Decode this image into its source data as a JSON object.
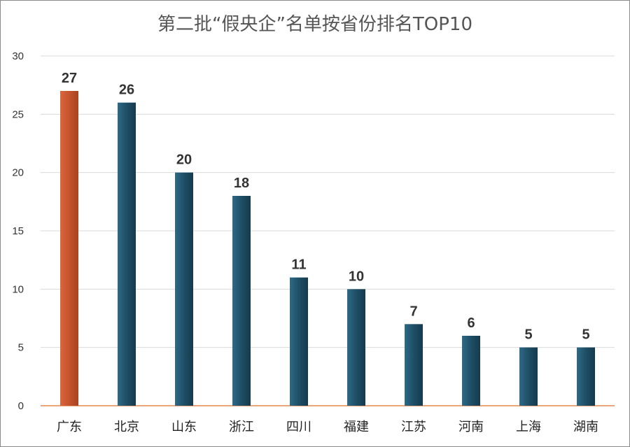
{
  "chart_data": {
    "type": "bar",
    "title": "第二批“假央企”名单按省份排名TOP10",
    "categories": [
      "广东",
      "北京",
      "山东",
      "浙江",
      "四川",
      "福建",
      "江苏",
      "河南",
      "上海",
      "湖南"
    ],
    "values": [
      27,
      26,
      20,
      18,
      11,
      10,
      7,
      6,
      5,
      5
    ],
    "data_labels": [
      "27",
      "26",
      "20",
      "18",
      "11",
      "10",
      "7",
      "6",
      "5",
      "5"
    ],
    "ylim": [
      0,
      30
    ],
    "yticks": [
      0,
      5,
      10,
      15,
      20,
      25,
      30
    ],
    "grid": true,
    "legend": "none",
    "colors": {
      "highlight": "#c4532e",
      "bar": "#1f4e66",
      "baseline": "#e0894f",
      "grid": "#d9d9d9"
    },
    "highlight_index": 0
  }
}
